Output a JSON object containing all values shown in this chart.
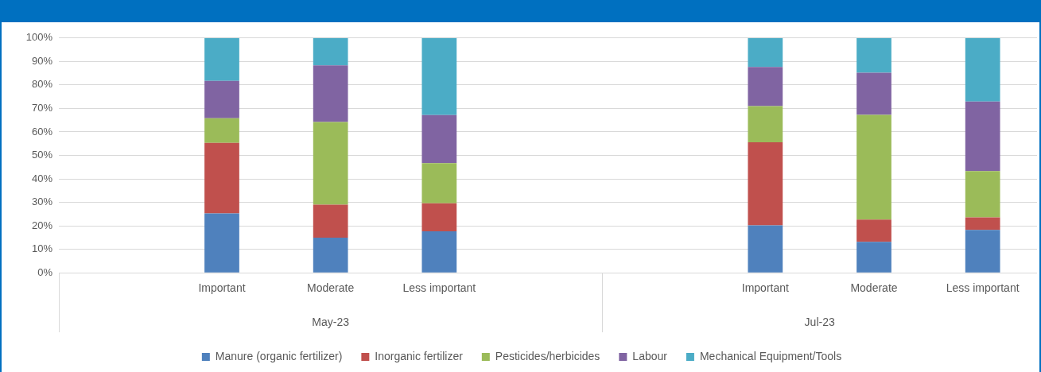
{
  "chart_data": {
    "type": "bar",
    "stacked": true,
    "categories": [
      null,
      "Important",
      "Moderate",
      "Less important",
      null,
      null,
      "Important",
      "Moderate",
      "Less important"
    ],
    "series": [
      {
        "name": "Manure (organic fertilizer)",
        "color": "#4f81bd",
        "values": [
          null,
          25.3,
          15,
          17.7,
          null,
          null,
          20.2,
          13.2,
          18.3
        ]
      },
      {
        "name": "Inorganic fertilizer",
        "color": "#c0504d",
        "values": [
          null,
          30,
          14,
          11.9,
          null,
          null,
          35.4,
          9.5,
          5.3
        ]
      },
      {
        "name": "Pesticides/herbicides",
        "color": "#9bbb59",
        "values": [
          null,
          10.5,
          35.2,
          17.1,
          null,
          null,
          15.4,
          44.6,
          19.7
        ]
      },
      {
        "name": "Labour",
        "color": "#8064a2",
        "values": [
          null,
          15.9,
          24.1,
          20.5,
          null,
          null,
          16.7,
          17.9,
          29.6
        ]
      },
      {
        "name": "Mechanical Equipment/Tools",
        "color": "#4bacc6",
        "values": [
          null,
          18.3,
          11.7,
          32.8,
          null,
          null,
          12.3,
          14.8,
          27.1
        ]
      }
    ],
    "ylim": [
      0,
      100
    ],
    "yticks": [
      {
        "value": 0,
        "label": "0%"
      },
      {
        "value": 10,
        "label": "10%"
      },
      {
        "value": 20,
        "label": "20%"
      },
      {
        "value": 30,
        "label": "30%"
      },
      {
        "value": 40,
        "label": "40%"
      },
      {
        "value": 50,
        "label": "50%"
      },
      {
        "value": 60,
        "label": "60%"
      },
      {
        "value": 70,
        "label": "70%"
      },
      {
        "value": 80,
        "label": "80%"
      },
      {
        "value": 90,
        "label": "90%"
      },
      {
        "value": 100,
        "label": "100%"
      }
    ],
    "annotations": [
      "May-23",
      "Jul-23"
    ],
    "grid": "y",
    "legend": "bottom"
  }
}
